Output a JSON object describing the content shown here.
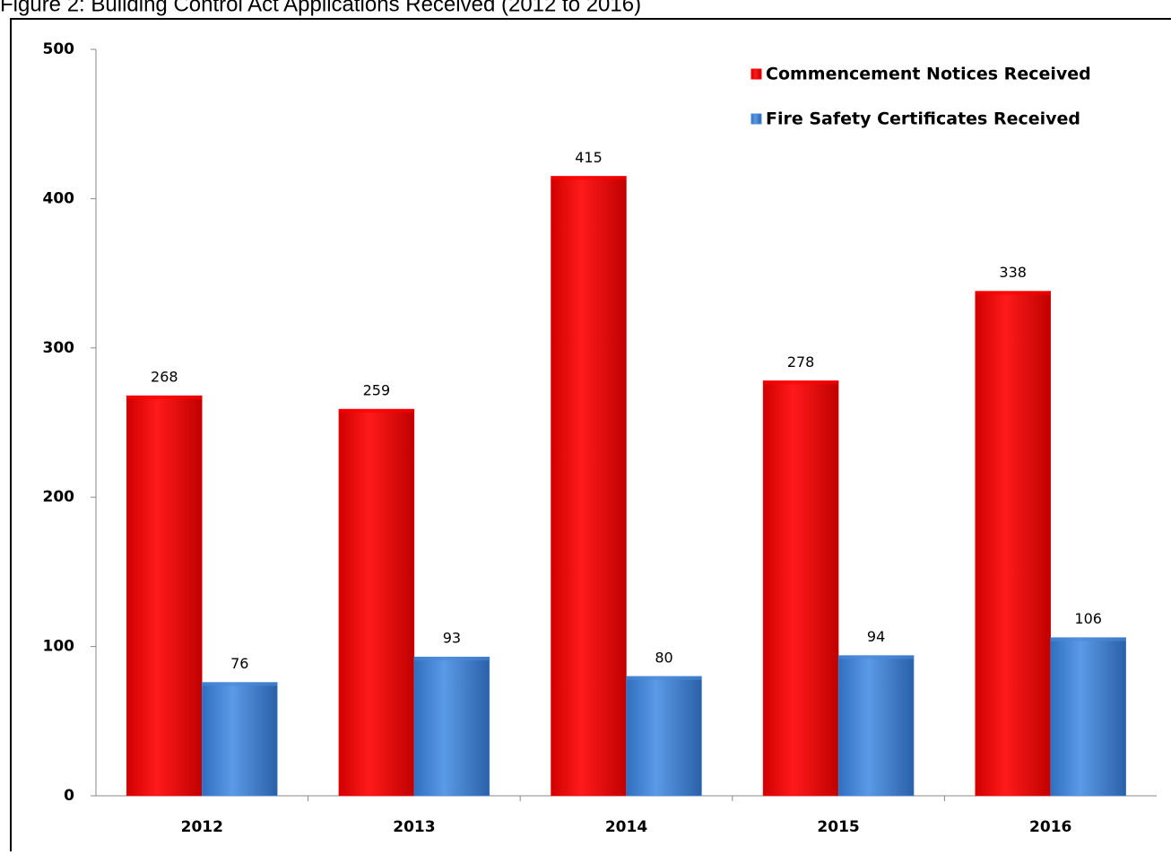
{
  "chart_data": {
    "type": "bar",
    "title": "Figure 2: Building Control Act Applications Received (2012 to 2016)",
    "categories": [
      "2012",
      "2013",
      "2014",
      "2015",
      "2016"
    ],
    "series": [
      {
        "name": "Commencement Notices Received",
        "color": "#ff0000",
        "values": [
          268,
          259,
          415,
          278,
          338
        ]
      },
      {
        "name": "Fire Safety Certificates Received",
        "color": "#4a8ad8",
        "values": [
          76,
          93,
          80,
          94,
          106
        ]
      }
    ],
    "ylim": [
      0,
      500
    ],
    "yticks": [
      0,
      100,
      200,
      300,
      400,
      500
    ],
    "legend": "top-right",
    "grid": false
  }
}
